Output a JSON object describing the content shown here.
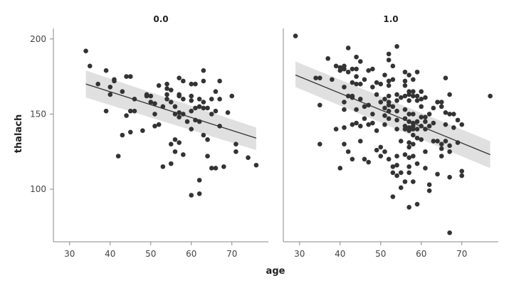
{
  "chart_data": {
    "type": "scatter",
    "xlabel": "age",
    "ylabel": "thalach",
    "xlim": [
      26,
      79
    ],
    "ylim": [
      65,
      207
    ],
    "xticks": [
      30,
      40,
      50,
      60,
      70
    ],
    "yticks": [
      100,
      150,
      200
    ],
    "grid": false,
    "colors": {
      "point": "#333333",
      "line": "#333333",
      "band": "#bbbbbb"
    },
    "panels": [
      {
        "title": "0.0",
        "regression": {
          "x": [
            34,
            76
          ],
          "y": [
            170,
            134
          ],
          "ci_lower": [
            161,
            126
          ],
          "ci_upper": [
            179,
            141
          ]
        },
        "points": [
          [
            34,
            192
          ],
          [
            35,
            182
          ],
          [
            37,
            170
          ],
          [
            39,
            179
          ],
          [
            39,
            152
          ],
          [
            40,
            168
          ],
          [
            40,
            163
          ],
          [
            41,
            173
          ],
          [
            41,
            172
          ],
          [
            42,
            122
          ],
          [
            43,
            165
          ],
          [
            43,
            136
          ],
          [
            44,
            175
          ],
          [
            44,
            149
          ],
          [
            45,
            175
          ],
          [
            45,
            152
          ],
          [
            45,
            138
          ],
          [
            46,
            160
          ],
          [
            46,
            152
          ],
          [
            48,
            139
          ],
          [
            49,
            162
          ],
          [
            49,
            163
          ],
          [
            50,
            162
          ],
          [
            50,
            158
          ],
          [
            51,
            157
          ],
          [
            51,
            142
          ],
          [
            51,
            150
          ],
          [
            52,
            169
          ],
          [
            52,
            143
          ],
          [
            53,
            155
          ],
          [
            53,
            115
          ],
          [
            54,
            170
          ],
          [
            54,
            163
          ],
          [
            54,
            160
          ],
          [
            54,
            167
          ],
          [
            55,
            158
          ],
          [
            55,
            166
          ],
          [
            55,
            117
          ],
          [
            55,
            130
          ],
          [
            56,
            150
          ],
          [
            56,
            133
          ],
          [
            56,
            125
          ],
          [
            56,
            155
          ],
          [
            57,
            174
          ],
          [
            57,
            163
          ],
          [
            57,
            162
          ],
          [
            57,
            151
          ],
          [
            57,
            148
          ],
          [
            57,
            131
          ],
          [
            58,
            172
          ],
          [
            58,
            160
          ],
          [
            58,
            123
          ],
          [
            58,
            150
          ],
          [
            59,
            145
          ],
          [
            60,
            170
          ],
          [
            60,
            162
          ],
          [
            60,
            159
          ],
          [
            60,
            152
          ],
          [
            60,
            140
          ],
          [
            60,
            96
          ],
          [
            61,
            170
          ],
          [
            61,
            154
          ],
          [
            61,
            146
          ],
          [
            62,
            160
          ],
          [
            62,
            155
          ],
          [
            62,
            145
          ],
          [
            62,
            106
          ],
          [
            62,
            97
          ],
          [
            63,
            179
          ],
          [
            63,
            172
          ],
          [
            63,
            158
          ],
          [
            63,
            136
          ],
          [
            63,
            154
          ],
          [
            64,
            154
          ],
          [
            64,
            133
          ],
          [
            64,
            122
          ],
          [
            65,
            160
          ],
          [
            65,
            150
          ],
          [
            65,
            114
          ],
          [
            66,
            152
          ],
          [
            66,
            165
          ],
          [
            66,
            114
          ],
          [
            67,
            160
          ],
          [
            67,
            172
          ],
          [
            67,
            142
          ],
          [
            68,
            115
          ],
          [
            69,
            151
          ],
          [
            70,
            162
          ],
          [
            71,
            130
          ],
          [
            71,
            125
          ],
          [
            74,
            121
          ],
          [
            76,
            116
          ]
        ]
      },
      {
        "title": "1.0",
        "regression": {
          "x": [
            29,
            77
          ],
          "y": [
            176,
            123
          ],
          "ci_lower": [
            168,
            114
          ],
          "ci_upper": [
            185,
            132
          ]
        },
        "points": [
          [
            29,
            202
          ],
          [
            34,
            174
          ],
          [
            35,
            174
          ],
          [
            35,
            156
          ],
          [
            35,
            130
          ],
          [
            37,
            187
          ],
          [
            38,
            173
          ],
          [
            39,
            182
          ],
          [
            39,
            140
          ],
          [
            40,
            181
          ],
          [
            40,
            179
          ],
          [
            40,
            114
          ],
          [
            41,
            182
          ],
          [
            41,
            180
          ],
          [
            41,
            168
          ],
          [
            41,
            158
          ],
          [
            41,
            153
          ],
          [
            41,
            141
          ],
          [
            41,
            130
          ],
          [
            42,
            194
          ],
          [
            42,
            178
          ],
          [
            42,
            162
          ],
          [
            42,
            125
          ],
          [
            43,
            180
          ],
          [
            43,
            171
          ],
          [
            43,
            162
          ],
          [
            43,
            161
          ],
          [
            43,
            143
          ],
          [
            43,
            120
          ],
          [
            44,
            188
          ],
          [
            44,
            180
          ],
          [
            44,
            175
          ],
          [
            44,
            170
          ],
          [
            44,
            153
          ],
          [
            44,
            144
          ],
          [
            45,
            185
          ],
          [
            45,
            170
          ],
          [
            45,
            160
          ],
          [
            45,
            142
          ],
          [
            45,
            132
          ],
          [
            46,
            173
          ],
          [
            46,
            147
          ],
          [
            46,
            155
          ],
          [
            46,
            120
          ],
          [
            47,
            179
          ],
          [
            47,
            156
          ],
          [
            47,
            143
          ],
          [
            47,
            118
          ],
          [
            48,
            180
          ],
          [
            48,
            168
          ],
          [
            48,
            150
          ],
          [
            48,
            144
          ],
          [
            49,
            171
          ],
          [
            49,
            163
          ],
          [
            49,
            139
          ],
          [
            49,
            126
          ],
          [
            50,
            170
          ],
          [
            50,
            158
          ],
          [
            50,
            128
          ],
          [
            50,
            122
          ],
          [
            51,
            176
          ],
          [
            51,
            160
          ],
          [
            51,
            154
          ],
          [
            51,
            149
          ],
          [
            51,
            143
          ],
          [
            51,
            125
          ],
          [
            52,
            190
          ],
          [
            52,
            186
          ],
          [
            52,
            172
          ],
          [
            52,
            169
          ],
          [
            52,
            162
          ],
          [
            52,
            158
          ],
          [
            52,
            156
          ],
          [
            52,
            152
          ],
          [
            52,
            147
          ],
          [
            52,
            120
          ],
          [
            53,
            182
          ],
          [
            53,
            173
          ],
          [
            53,
            155
          ],
          [
            53,
            115
          ],
          [
            53,
            111
          ],
          [
            53,
            95
          ],
          [
            54,
            195
          ],
          [
            54,
            163
          ],
          [
            54,
            159
          ],
          [
            54,
            152
          ],
          [
            54,
            146
          ],
          [
            54,
            140
          ],
          [
            54,
            122
          ],
          [
            54,
            116
          ],
          [
            54,
            109
          ],
          [
            55,
            161
          ],
          [
            55,
            132
          ],
          [
            55,
            111
          ],
          [
            55,
            101
          ],
          [
            56,
            178
          ],
          [
            56,
            172
          ],
          [
            56,
            169
          ],
          [
            56,
            162
          ],
          [
            56,
            153
          ],
          [
            56,
            147
          ],
          [
            56,
            142
          ],
          [
            56,
            140
          ],
          [
            56,
            123
          ],
          [
            56,
            105
          ],
          [
            57,
            176
          ],
          [
            57,
            165
          ],
          [
            57,
            163
          ],
          [
            57,
            159
          ],
          [
            57,
            150
          ],
          [
            57,
            145
          ],
          [
            57,
            141
          ],
          [
            57,
            139
          ],
          [
            57,
            131
          ],
          [
            57,
            128
          ],
          [
            57,
            121
          ],
          [
            57,
            115
          ],
          [
            57,
            111
          ],
          [
            57,
            88
          ],
          [
            58,
            173
          ],
          [
            58,
            165
          ],
          [
            58,
            162
          ],
          [
            58,
            150
          ],
          [
            58,
            144
          ],
          [
            58,
            142
          ],
          [
            58,
            140
          ],
          [
            58,
            136
          ],
          [
            58,
            130
          ],
          [
            58,
            122
          ],
          [
            58,
            105
          ],
          [
            59,
            178
          ],
          [
            59,
            162
          ],
          [
            59,
            159
          ],
          [
            59,
            145
          ],
          [
            59,
            140
          ],
          [
            59,
            134
          ],
          [
            59,
            117
          ],
          [
            59,
            90
          ],
          [
            60,
            165
          ],
          [
            60,
            160
          ],
          [
            60,
            155
          ],
          [
            60,
            148
          ],
          [
            60,
            142
          ],
          [
            60,
            133
          ],
          [
            61,
            161
          ],
          [
            61,
            148
          ],
          [
            61,
            145
          ],
          [
            61,
            140
          ],
          [
            61,
            125
          ],
          [
            61,
            114
          ],
          [
            62,
            150
          ],
          [
            62,
            142
          ],
          [
            62,
            103
          ],
          [
            62,
            99
          ],
          [
            63,
            154
          ],
          [
            63,
            144
          ],
          [
            63,
            132
          ],
          [
            64,
            158
          ],
          [
            64,
            132
          ],
          [
            64,
            110
          ],
          [
            65,
            158
          ],
          [
            65,
            155
          ],
          [
            65,
            130
          ],
          [
            65,
            127
          ],
          [
            65,
            122
          ],
          [
            66,
            174
          ],
          [
            66,
            151
          ],
          [
            66,
            143
          ],
          [
            66,
            132
          ],
          [
            67,
            163
          ],
          [
            67,
            150
          ],
          [
            67,
            129
          ],
          [
            67,
            125
          ],
          [
            67,
            108
          ],
          [
            67,
            71
          ],
          [
            68,
            150
          ],
          [
            68,
            141
          ],
          [
            69,
            146
          ],
          [
            69,
            131
          ],
          [
            70,
            143
          ],
          [
            70,
            112
          ],
          [
            70,
            109
          ],
          [
            77,
            162
          ]
        ]
      }
    ]
  }
}
